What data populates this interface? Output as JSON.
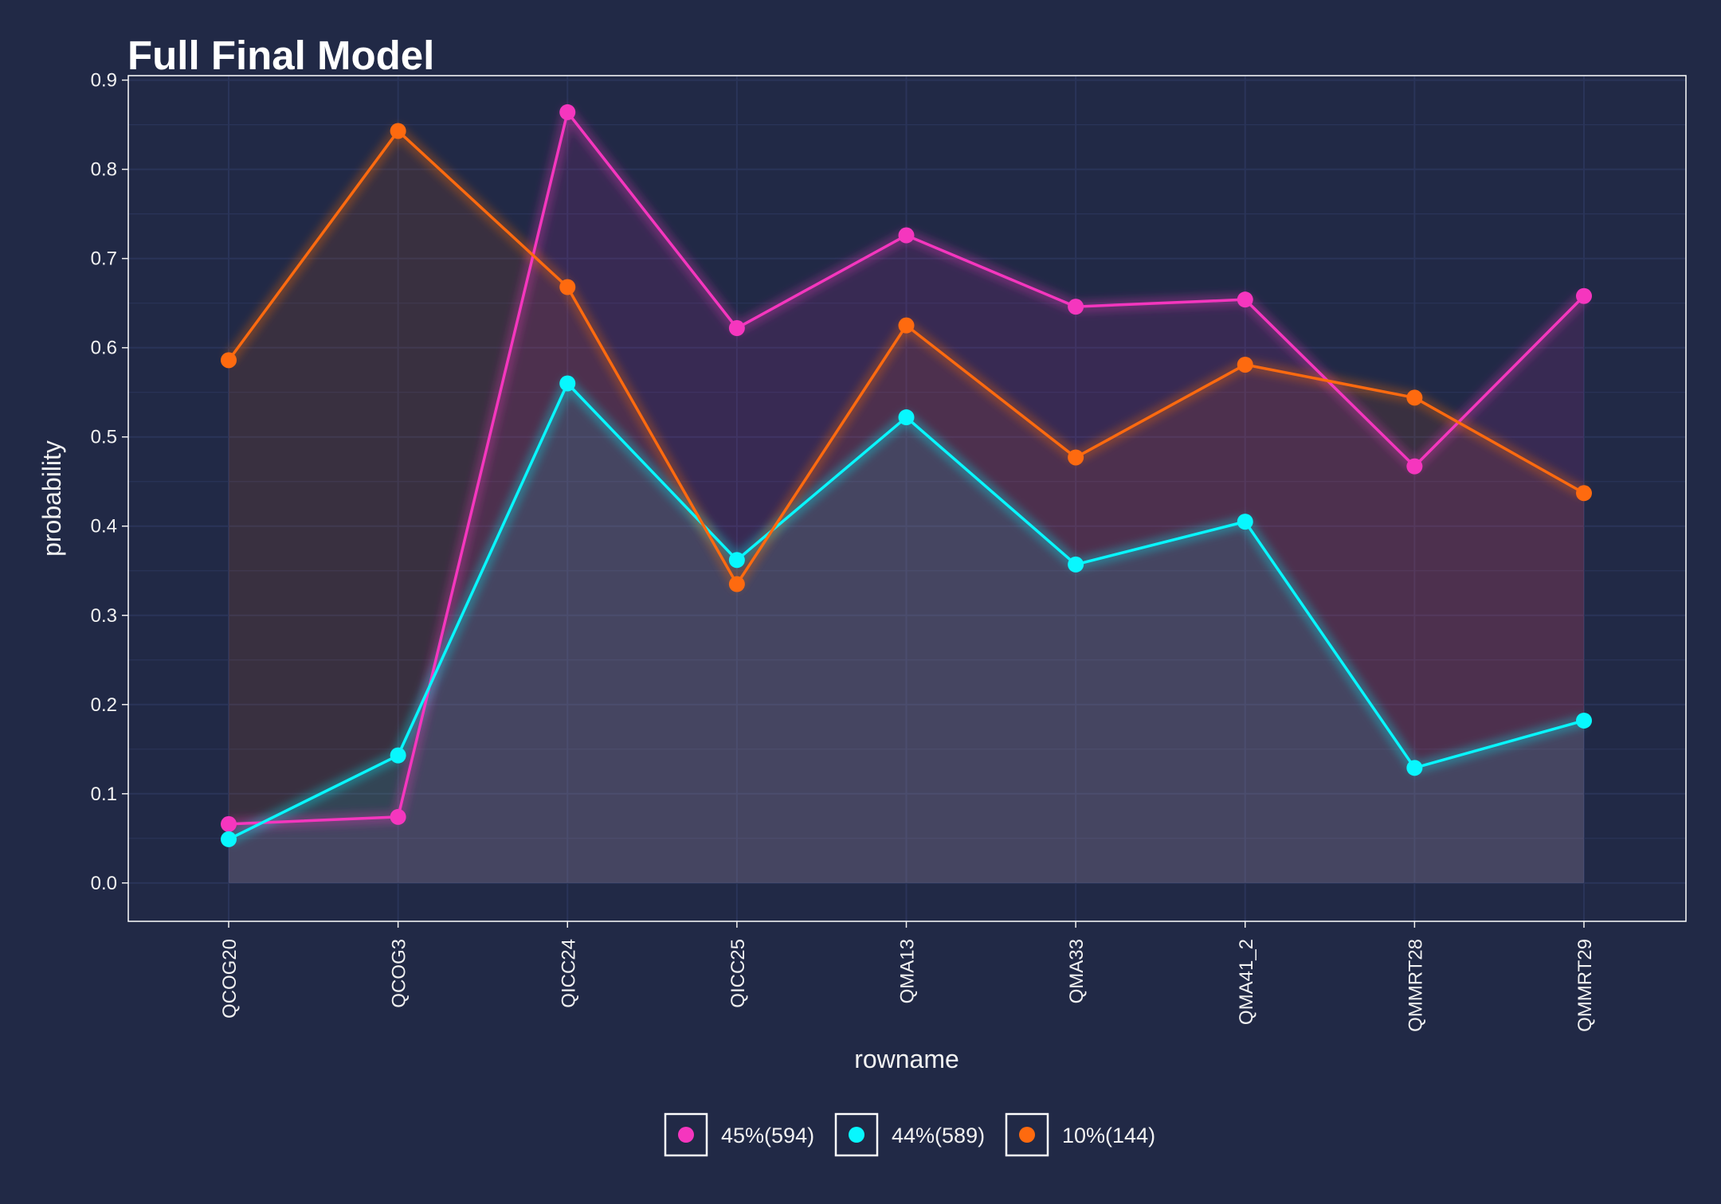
{
  "chart_data": {
    "type": "line",
    "title": "Full Final Model",
    "xlabel": "rowname",
    "ylabel": "probability",
    "categories": [
      "QCOG20",
      "QCOG3",
      "QICC24",
      "QICC25",
      "QMA13",
      "QMA33",
      "QMA41_2",
      "QMMRT28",
      "QMMRT29"
    ],
    "ylim": [
      -0.043,
      0.905
    ],
    "yticks": [
      0.0,
      0.1,
      0.2,
      0.3,
      0.4,
      0.5,
      0.6,
      0.7,
      0.8,
      0.9
    ],
    "ytick_labels": [
      "0.0",
      "0.1",
      "0.2",
      "0.3",
      "0.4",
      "0.5",
      "0.6",
      "0.7",
      "0.8",
      "0.9"
    ],
    "grid": true,
    "area_fill": true,
    "legend_position": "bottom",
    "series": [
      {
        "name": "45%(594)",
        "color": "#f536be",
        "values": [
          0.066,
          0.074,
          0.864,
          0.622,
          0.726,
          0.646,
          0.654,
          0.467,
          0.658
        ]
      },
      {
        "name": "44%(589)",
        "color": "#08f7fe",
        "values": [
          0.049,
          0.143,
          0.56,
          0.362,
          0.522,
          0.357,
          0.405,
          0.129,
          0.182
        ]
      },
      {
        "name": "10%(144)",
        "color": "#fe6a0f",
        "values": [
          0.586,
          0.843,
          0.668,
          0.335,
          0.625,
          0.477,
          0.581,
          0.544,
          0.437
        ]
      }
    ],
    "colors": {
      "background": "#212946",
      "grid": "#2a3459",
      "panel_border": "#ffffff",
      "text": "#f2f2f2"
    }
  }
}
